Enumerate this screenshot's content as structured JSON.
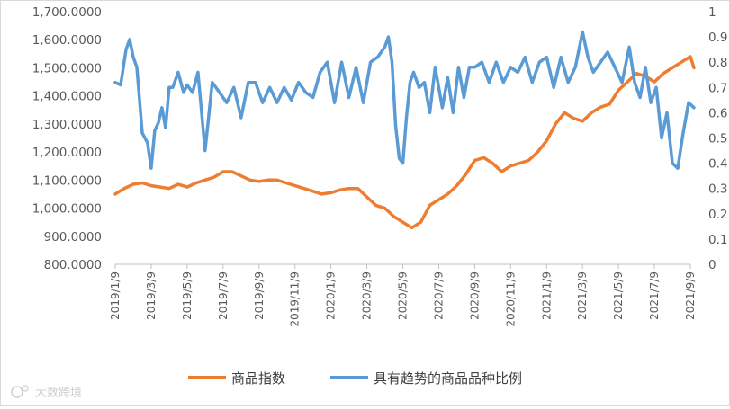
{
  "chart_data": {
    "type": "line",
    "title": "",
    "xlabel": "",
    "ylabel": "",
    "y2label": "",
    "x_tick_labels": [
      "2019/1/9",
      "2019/3/9",
      "2019/5/9",
      "2019/7/9",
      "2019/9/9",
      "2019/11/9",
      "2020/1/9",
      "2020/3/9",
      "2020/5/9",
      "2020/7/9",
      "2020/9/9",
      "2020/11/9",
      "2021/1/9",
      "2021/3/9",
      "2021/5/9",
      "2021/7/9",
      "2021/9/9"
    ],
    "left_axis": {
      "ylim": [
        800,
        1700
      ],
      "ticks": [
        "800.0000",
        "900.0000",
        "1,000.0000",
        "1,100.0000",
        "1,200.0000",
        "1,300.0000",
        "1,400.0000",
        "1,500.0000",
        "1,600.0000",
        "1,700.0000"
      ]
    },
    "right_axis": {
      "ylim": [
        0,
        1
      ],
      "ticks": [
        "0",
        "0.1",
        "0.2",
        "0.3",
        "0.4",
        "0.5",
        "0.6",
        "0.7",
        "0.8",
        "0.9",
        "1"
      ]
    },
    "series": [
      {
        "name": "商品指数",
        "axis": "left",
        "color": "#ED7D31",
        "x": [
          0,
          0.25,
          0.5,
          0.75,
          1,
          1.25,
          1.5,
          1.75,
          2,
          2.25,
          2.5,
          2.75,
          3,
          3.25,
          3.5,
          3.75,
          4,
          4.25,
          4.5,
          4.75,
          5,
          5.25,
          5.5,
          5.75,
          6,
          6.25,
          6.5,
          6.75,
          7,
          7.25,
          7.5,
          7.75,
          8,
          8.25,
          8.5,
          8.75,
          9,
          9.25,
          9.5,
          9.75,
          10,
          10.25,
          10.5,
          10.75,
          11,
          11.25,
          11.5,
          11.75,
          12,
          12.25,
          12.5,
          12.75,
          13,
          13.25,
          13.5,
          13.75,
          14,
          14.25,
          14.5,
          14.75,
          15,
          15.25,
          15.5,
          15.75,
          16,
          16.1
        ],
        "values": [
          1050,
          1070,
          1085,
          1090,
          1080,
          1075,
          1070,
          1085,
          1075,
          1090,
          1100,
          1110,
          1130,
          1130,
          1115,
          1100,
          1095,
          1100,
          1100,
          1090,
          1080,
          1070,
          1060,
          1050,
          1055,
          1065,
          1070,
          1070,
          1040,
          1010,
          1000,
          970,
          950,
          930,
          950,
          1010,
          1030,
          1050,
          1080,
          1120,
          1170,
          1180,
          1160,
          1130,
          1150,
          1160,
          1170,
          1200,
          1240,
          1300,
          1340,
          1320,
          1310,
          1340,
          1360,
          1370,
          1420,
          1450,
          1480,
          1470,
          1450,
          1480,
          1500,
          1520,
          1540,
          1500
        ]
      },
      {
        "name": "具有趋势的商品品种比例",
        "axis": "right",
        "color": "#5B9BD5",
        "x": [
          0,
          0.15,
          0.3,
          0.4,
          0.5,
          0.6,
          0.75,
          0.9,
          1.0,
          1.1,
          1.2,
          1.3,
          1.4,
          1.5,
          1.6,
          1.75,
          1.9,
          2.0,
          2.15,
          2.3,
          2.5,
          2.7,
          2.9,
          3.1,
          3.3,
          3.5,
          3.7,
          3.9,
          4.1,
          4.3,
          4.5,
          4.7,
          4.9,
          5.1,
          5.3,
          5.5,
          5.7,
          5.9,
          6.1,
          6.3,
          6.5,
          6.7,
          6.9,
          7.1,
          7.3,
          7.5,
          7.6,
          7.7,
          7.8,
          7.9,
          8.0,
          8.1,
          8.2,
          8.3,
          8.45,
          8.6,
          8.75,
          8.9,
          9.0,
          9.1,
          9.25,
          9.4,
          9.55,
          9.7,
          9.85,
          10.0,
          10.2,
          10.4,
          10.6,
          10.8,
          11.0,
          11.2,
          11.4,
          11.6,
          11.8,
          12.0,
          12.2,
          12.4,
          12.6,
          12.8,
          13.0,
          13.15,
          13.3,
          13.5,
          13.7,
          13.9,
          14.1,
          14.3,
          14.45,
          14.6,
          14.75,
          14.9,
          15.05,
          15.2,
          15.35,
          15.5,
          15.65,
          15.8,
          15.95,
          16.1
        ],
        "values": [
          0.72,
          0.71,
          0.85,
          0.89,
          0.82,
          0.78,
          0.52,
          0.48,
          0.38,
          0.53,
          0.56,
          0.62,
          0.54,
          0.7,
          0.7,
          0.76,
          0.68,
          0.71,
          0.68,
          0.76,
          0.45,
          0.72,
          0.68,
          0.64,
          0.7,
          0.58,
          0.72,
          0.72,
          0.64,
          0.7,
          0.64,
          0.7,
          0.65,
          0.72,
          0.68,
          0.66,
          0.76,
          0.8,
          0.64,
          0.8,
          0.66,
          0.78,
          0.64,
          0.8,
          0.82,
          0.86,
          0.9,
          0.8,
          0.55,
          0.42,
          0.4,
          0.58,
          0.72,
          0.76,
          0.7,
          0.72,
          0.6,
          0.78,
          0.7,
          0.62,
          0.74,
          0.6,
          0.78,
          0.66,
          0.78,
          0.78,
          0.8,
          0.72,
          0.8,
          0.72,
          0.78,
          0.76,
          0.82,
          0.72,
          0.8,
          0.82,
          0.7,
          0.82,
          0.72,
          0.78,
          0.92,
          0.82,
          0.76,
          0.8,
          0.84,
          0.78,
          0.72,
          0.86,
          0.72,
          0.66,
          0.78,
          0.64,
          0.7,
          0.5,
          0.6,
          0.4,
          0.38,
          0.52,
          0.64,
          0.62
        ]
      }
    ],
    "legend": {
      "position": "bottom"
    }
  },
  "watermark": {
    "icon": "data-logo-icon",
    "text": "大数跨境"
  }
}
